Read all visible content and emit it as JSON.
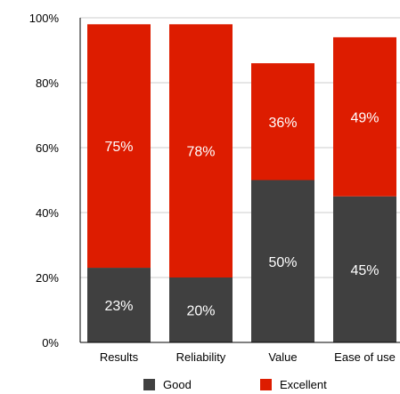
{
  "chart_data": {
    "type": "bar",
    "stacked": true,
    "categories": [
      "Results",
      "Reliability",
      "Value",
      "Ease of use"
    ],
    "series": [
      {
        "name": "Good",
        "values": [
          23,
          20,
          50,
          45
        ],
        "labels": [
          "23%",
          "20%",
          "50%",
          "45%"
        ],
        "color": "#404040"
      },
      {
        "name": "Excellent",
        "values": [
          75,
          78,
          36,
          49
        ],
        "labels": [
          "75%",
          "78%",
          "36%",
          "49%"
        ],
        "color": "#dd1c00"
      }
    ],
    "y_ticks": [
      0,
      20,
      40,
      60,
      80,
      100
    ],
    "y_tick_labels": [
      "0%",
      "20%",
      "40%",
      "60%",
      "80%",
      "100%"
    ],
    "ylim": [
      0,
      100
    ],
    "grid": true,
    "legend_position": "bottom"
  }
}
